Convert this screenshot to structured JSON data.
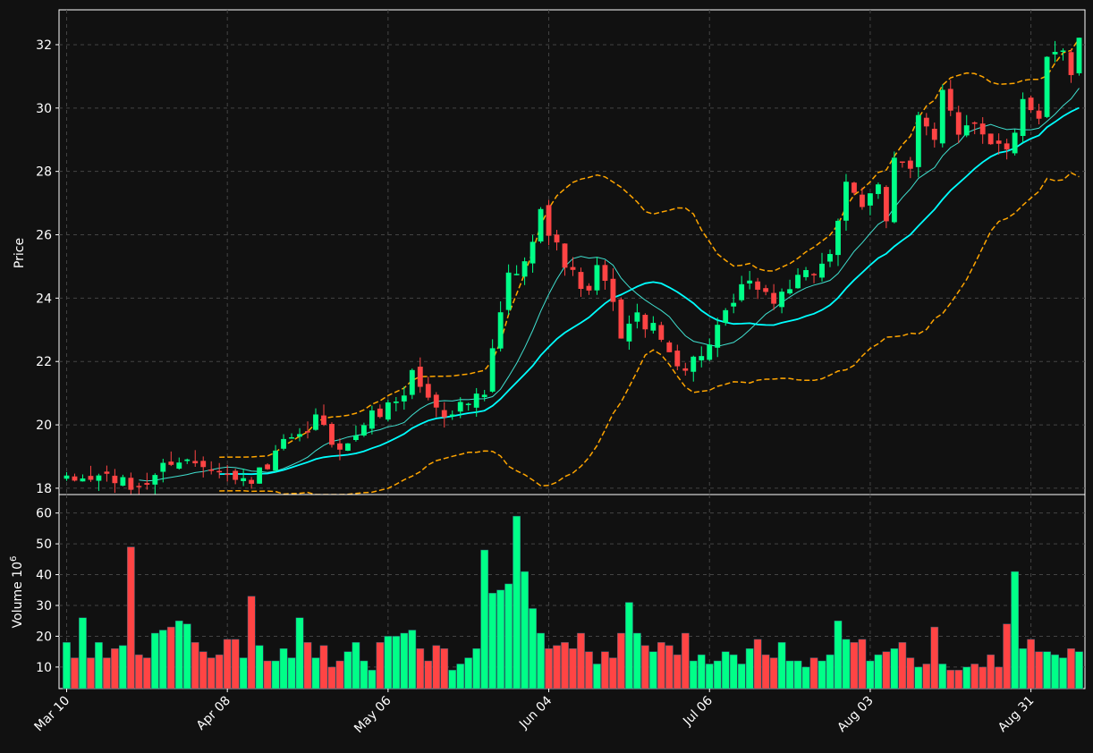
{
  "chart_data": {
    "type": "candlestick",
    "panels": [
      {
        "name": "price",
        "ylabel": "Price",
        "ylim": [
          17.8,
          33.1
        ],
        "yticks": [
          18,
          20,
          22,
          24,
          26,
          28,
          30,
          32
        ]
      },
      {
        "name": "volume",
        "ylabel": "Volume  10",
        "ylabel_exponent": "6",
        "ylim": [
          3,
          66
        ],
        "yticks": [
          10,
          20,
          30,
          40,
          50,
          60
        ]
      }
    ],
    "xticks": [
      {
        "label": "Mar 10",
        "index": 0
      },
      {
        "label": "Apr 08",
        "index": 20
      },
      {
        "label": "May 06",
        "index": 40
      },
      {
        "label": "Jun 04",
        "index": 60
      },
      {
        "label": "Jul 06",
        "index": 80
      },
      {
        "label": "Aug 03",
        "index": 100
      },
      {
        "label": "Aug 31",
        "index": 120
      }
    ],
    "grid": true,
    "colors": {
      "background": "#111111",
      "up": "#00ff88",
      "down": "#ff4444",
      "ma_fast": "#40e0d0",
      "ma_slow": "#00ffff",
      "bollinger": "#ffa500",
      "text": "#ffffff",
      "grid": "#444444"
    },
    "overlays": [
      "moving average (short)",
      "moving average (long)",
      "bollinger upper",
      "bollinger lower"
    ],
    "candles_n": 127,
    "close_anchors": [
      [
        0,
        18.2
      ],
      [
        5,
        18.4
      ],
      [
        8,
        18.0
      ],
      [
        10,
        18.2
      ],
      [
        13,
        18.9
      ],
      [
        17,
        18.8
      ],
      [
        19,
        18.7
      ],
      [
        21,
        18.2
      ],
      [
        23,
        18.3
      ],
      [
        25,
        18.6
      ],
      [
        27,
        19.4
      ],
      [
        29,
        19.5
      ],
      [
        31,
        20.2
      ],
      [
        33,
        19.5
      ],
      [
        35,
        19.3
      ],
      [
        37,
        20.1
      ],
      [
        40,
        20.6
      ],
      [
        42,
        21.0
      ],
      [
        43,
        21.7
      ],
      [
        45,
        20.8
      ],
      [
        47,
        20.4
      ],
      [
        49,
        20.6
      ],
      [
        52,
        20.9
      ],
      [
        53,
        22.3
      ],
      [
        55,
        24.7
      ],
      [
        57,
        25.0
      ],
      [
        59,
        27.0
      ],
      [
        60,
        26.0
      ],
      [
        61,
        25.6
      ],
      [
        63,
        24.7
      ],
      [
        65,
        24.1
      ],
      [
        66,
        24.9
      ],
      [
        67,
        24.5
      ],
      [
        69,
        22.9
      ],
      [
        71,
        23.4
      ],
      [
        73,
        23.0
      ],
      [
        75,
        22.3
      ],
      [
        77,
        21.8
      ],
      [
        79,
        22.3
      ],
      [
        80,
        22.5
      ],
      [
        82,
        23.4
      ],
      [
        84,
        24.3
      ],
      [
        86,
        24.4
      ],
      [
        88,
        23.9
      ],
      [
        90,
        24.4
      ],
      [
        93,
        24.8
      ],
      [
        95,
        25.5
      ],
      [
        97,
        27.5
      ],
      [
        99,
        26.8
      ],
      [
        101,
        27.7
      ],
      [
        102,
        26.6
      ],
      [
        103,
        28.5
      ],
      [
        105,
        28.0
      ],
      [
        106,
        29.6
      ],
      [
        108,
        29.0
      ],
      [
        109,
        30.7
      ],
      [
        111,
        29.3
      ],
      [
        113,
        29.6
      ],
      [
        115,
        29.0
      ],
      [
        117,
        28.6
      ],
      [
        119,
        30.1
      ],
      [
        121,
        29.5
      ],
      [
        122,
        31.5
      ],
      [
        124,
        31.9
      ],
      [
        125,
        31.2
      ],
      [
        126,
        32.3
      ]
    ],
    "volume_anchors": [
      [
        0,
        18
      ],
      [
        1,
        13
      ],
      [
        2,
        26
      ],
      [
        3,
        13
      ],
      [
        4,
        18
      ],
      [
        5,
        13
      ],
      [
        6,
        16
      ],
      [
        7,
        17
      ],
      [
        8,
        49
      ],
      [
        9,
        14
      ],
      [
        10,
        13
      ],
      [
        11,
        21
      ],
      [
        12,
        22
      ],
      [
        13,
        23
      ],
      [
        14,
        25
      ],
      [
        15,
        24
      ],
      [
        16,
        18
      ],
      [
        17,
        15
      ],
      [
        18,
        13
      ],
      [
        19,
        14
      ],
      [
        20,
        19
      ],
      [
        21,
        19
      ],
      [
        22,
        13
      ],
      [
        23,
        33
      ],
      [
        24,
        17
      ],
      [
        25,
        12
      ],
      [
        26,
        12
      ],
      [
        27,
        16
      ],
      [
        28,
        13
      ],
      [
        29,
        26
      ],
      [
        30,
        18
      ],
      [
        31,
        13
      ],
      [
        32,
        17
      ],
      [
        33,
        10
      ],
      [
        34,
        12
      ],
      [
        35,
        15
      ],
      [
        36,
        18
      ],
      [
        37,
        12
      ],
      [
        38,
        9
      ],
      [
        39,
        18
      ],
      [
        40,
        20
      ],
      [
        41,
        20
      ],
      [
        42,
        21
      ],
      [
        43,
        22
      ],
      [
        44,
        16
      ],
      [
        45,
        12
      ],
      [
        46,
        17
      ],
      [
        47,
        16
      ],
      [
        48,
        9
      ],
      [
        49,
        11
      ],
      [
        50,
        13
      ],
      [
        51,
        16
      ],
      [
        52,
        48
      ],
      [
        53,
        34
      ],
      [
        54,
        35
      ],
      [
        55,
        37
      ],
      [
        56,
        59
      ],
      [
        57,
        41
      ],
      [
        58,
        29
      ],
      [
        59,
        21
      ],
      [
        60,
        16
      ],
      [
        61,
        17
      ],
      [
        62,
        18
      ],
      [
        63,
        16
      ],
      [
        64,
        21
      ],
      [
        65,
        15
      ],
      [
        66,
        11
      ],
      [
        67,
        15
      ],
      [
        68,
        13
      ],
      [
        69,
        21
      ],
      [
        70,
        31
      ],
      [
        71,
        21
      ],
      [
        72,
        17
      ],
      [
        73,
        15
      ],
      [
        74,
        18
      ],
      [
        75,
        17
      ],
      [
        76,
        14
      ],
      [
        77,
        21
      ],
      [
        78,
        12
      ],
      [
        79,
        14
      ],
      [
        80,
        11
      ],
      [
        81,
        12
      ],
      [
        82,
        15
      ],
      [
        83,
        14
      ],
      [
        84,
        11
      ],
      [
        85,
        16
      ],
      [
        86,
        19
      ],
      [
        87,
        14
      ],
      [
        88,
        13
      ],
      [
        89,
        18
      ],
      [
        90,
        12
      ],
      [
        91,
        12
      ],
      [
        92,
        10
      ],
      [
        93,
        13
      ],
      [
        94,
        12
      ],
      [
        95,
        14
      ],
      [
        96,
        25
      ],
      [
        97,
        19
      ],
      [
        98,
        18
      ],
      [
        99,
        19
      ],
      [
        100,
        12
      ],
      [
        101,
        14
      ],
      [
        102,
        15
      ],
      [
        103,
        16
      ],
      [
        104,
        18
      ],
      [
        105,
        13
      ],
      [
        106,
        10
      ],
      [
        107,
        11
      ],
      [
        108,
        23
      ],
      [
        109,
        11
      ],
      [
        110,
        9
      ],
      [
        111,
        9
      ],
      [
        112,
        10
      ],
      [
        113,
        11
      ],
      [
        114,
        10
      ],
      [
        115,
        14
      ],
      [
        116,
        10
      ],
      [
        117,
        24
      ],
      [
        118,
        41
      ],
      [
        119,
        16
      ],
      [
        120,
        19
      ],
      [
        121,
        15
      ],
      [
        122,
        15
      ],
      [
        123,
        14
      ],
      [
        124,
        13
      ],
      [
        125,
        16
      ],
      [
        126,
        15
      ]
    ]
  }
}
